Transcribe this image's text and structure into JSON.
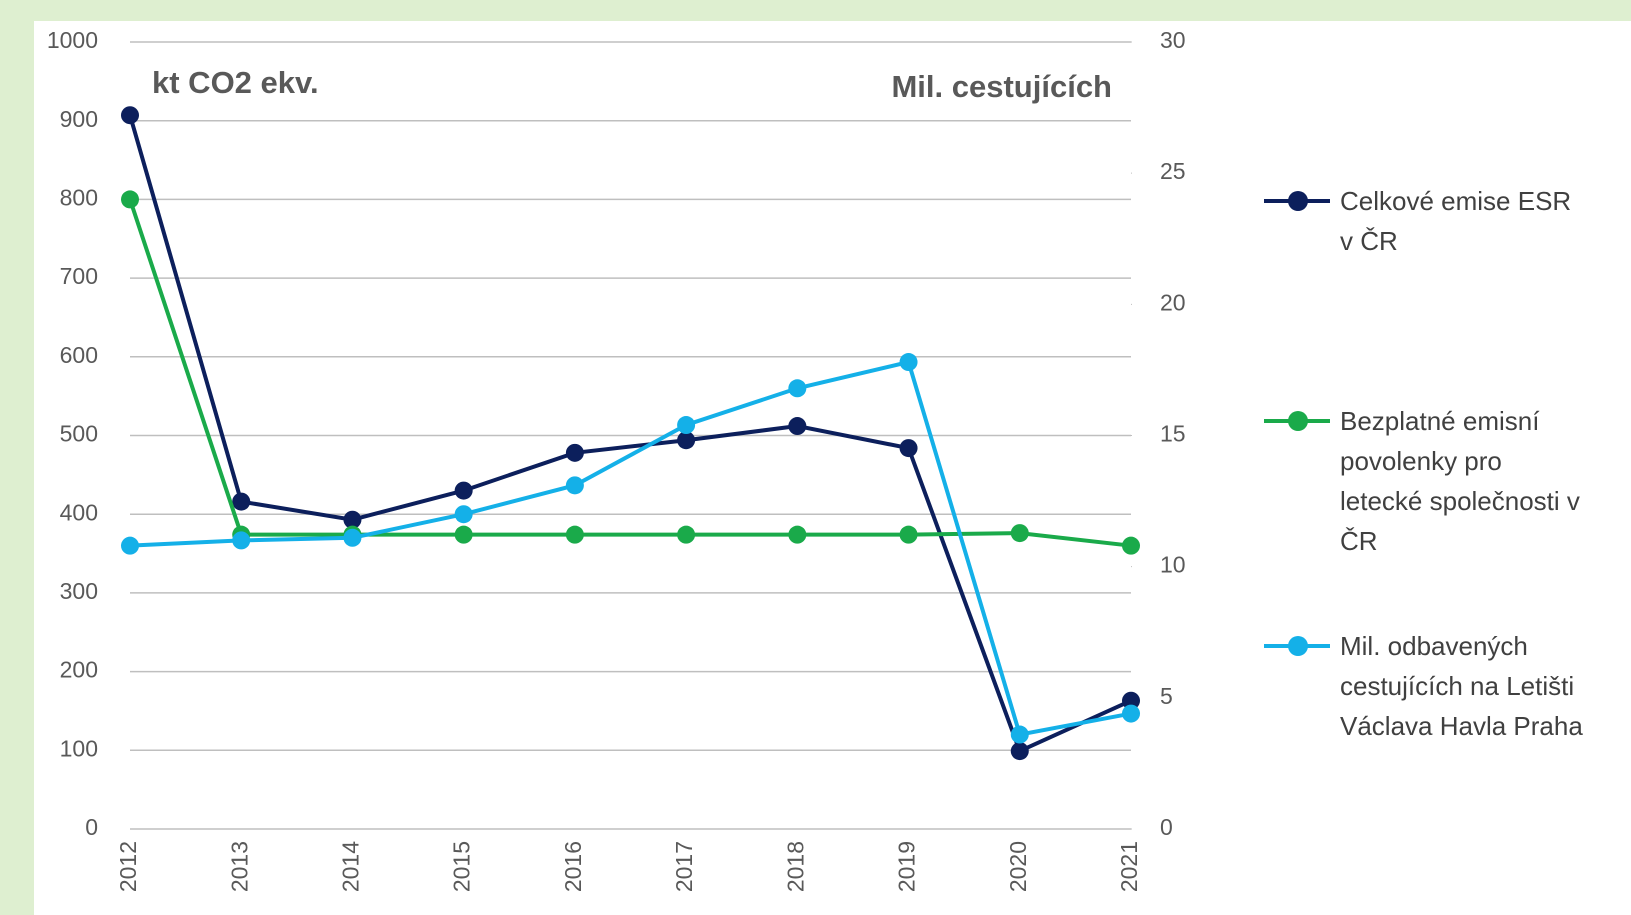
{
  "chart_data": {
    "type": "line",
    "y_title": "kt CO2 ekv.",
    "y2_title": "Mil. cestujících",
    "categories": [
      "2012",
      "2013",
      "2014",
      "2015",
      "2016",
      "2017",
      "2018",
      "2019",
      "2020",
      "2021"
    ],
    "series": [
      {
        "name": "Celkové emise ESR v ČR",
        "color": "#0c1f5c",
        "values": [
          907,
          416,
          393,
          430,
          478,
          494,
          512,
          484,
          99,
          163
        ]
      },
      {
        "name": "Bezplatné emisní povolenky pro letecké společnosti v ČR",
        "color": "#1aaa4a",
        "values": [
          800,
          374,
          374,
          374,
          374,
          374,
          374,
          374,
          376,
          360
        ]
      },
      {
        "name": "Mil. odbavených cestujících na Letišti Václava Havla Praha",
        "color": "#14b0e8",
        "axis": "y2",
        "values": [
          10.8,
          11.0,
          11.1,
          12.0,
          13.1,
          15.4,
          16.8,
          17.8,
          3.6,
          4.4
        ]
      }
    ],
    "ylim": [
      0,
      1000
    ],
    "yticks": [
      0,
      100,
      200,
      300,
      400,
      500,
      600,
      700,
      800,
      900,
      1000
    ],
    "y2lim": [
      0,
      30
    ],
    "y2ticks": [
      0,
      5,
      10,
      15,
      20,
      25,
      30
    ],
    "grid": true
  }
}
